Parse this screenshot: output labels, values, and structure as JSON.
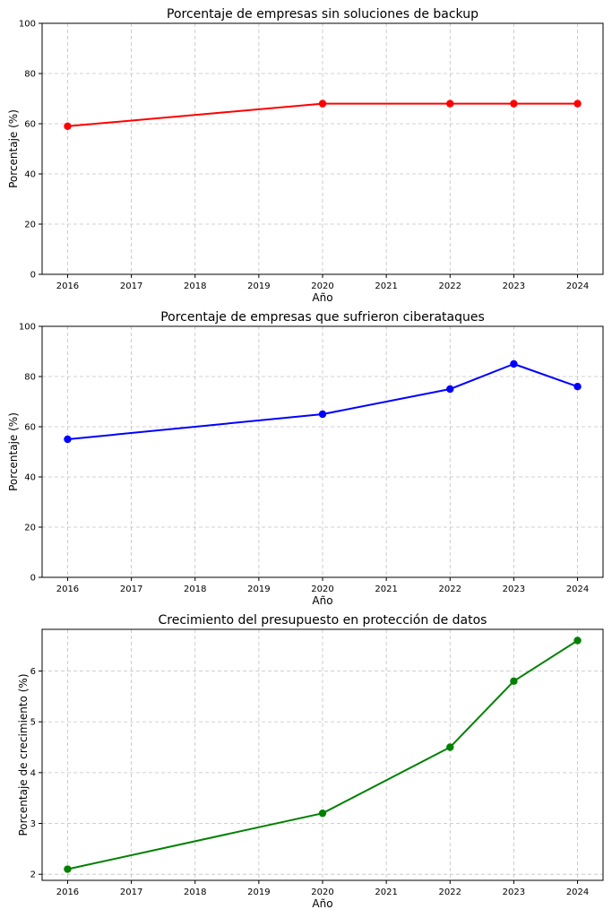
{
  "chart_data": [
    {
      "type": "line",
      "title": "Porcentaje de empresas sin soluciones de backup",
      "xlabel": "Año",
      "ylabel": "Porcentaje (%)",
      "x": [
        2016,
        2020,
        2022,
        2023,
        2024
      ],
      "series": [
        {
          "values": [
            59,
            68,
            68,
            68,
            68
          ],
          "color": "#ff0000"
        }
      ],
      "xticks": [
        "2016",
        "2017",
        "2018",
        "2019",
        "2020",
        "2021",
        "2022",
        "2023",
        "2024"
      ],
      "xlim": [
        2015.6,
        2024.4
      ],
      "yticks": [
        "0",
        "20",
        "40",
        "60",
        "80",
        "100"
      ],
      "ylim": [
        0,
        100
      ],
      "grid": true
    },
    {
      "type": "line",
      "title": "Porcentaje de empresas que sufrieron ciberataques",
      "xlabel": "Año",
      "ylabel": "Porcentaje (%)",
      "x": [
        2016,
        2020,
        2022,
        2023,
        2024
      ],
      "series": [
        {
          "values": [
            55,
            65,
            75,
            85,
            76
          ],
          "color": "#0000ff"
        }
      ],
      "xticks": [
        "2016",
        "2017",
        "2018",
        "2019",
        "2020",
        "2021",
        "2022",
        "2023",
        "2024"
      ],
      "xlim": [
        2015.6,
        2024.4
      ],
      "yticks": [
        "0",
        "20",
        "40",
        "60",
        "80",
        "100"
      ],
      "ylim": [
        0,
        100
      ],
      "grid": true
    },
    {
      "type": "line",
      "title": "Crecimiento del presupuesto en protección de datos",
      "xlabel": "Año",
      "ylabel": "Porcentaje de crecimiento (%)",
      "x": [
        2016,
        2020,
        2022,
        2023,
        2024
      ],
      "series": [
        {
          "values": [
            2.1,
            3.2,
            4.5,
            5.8,
            6.6
          ],
          "color": "#008000"
        }
      ],
      "xticks": [
        "2016",
        "2017",
        "2018",
        "2019",
        "2020",
        "2021",
        "2022",
        "2023",
        "2024"
      ],
      "xlim": [
        2015.6,
        2024.4
      ],
      "yticks": [
        "2",
        "3",
        "4",
        "5",
        "6"
      ],
      "ylim": [
        1.88,
        6.82
      ],
      "grid": true
    }
  ]
}
